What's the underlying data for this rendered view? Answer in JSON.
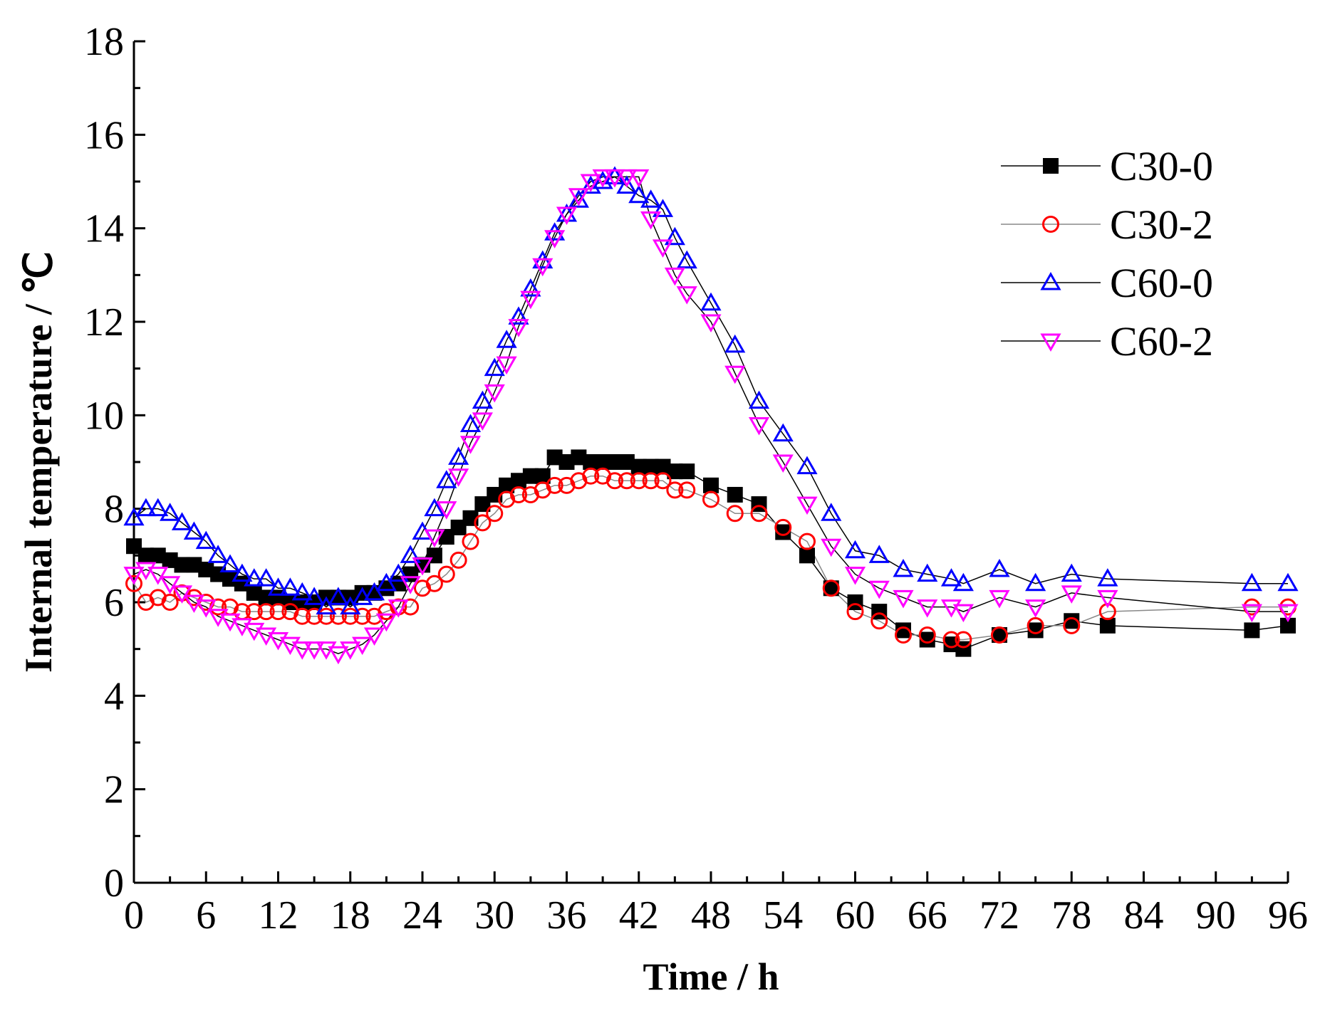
{
  "chart_data": {
    "type": "line",
    "title": "",
    "xlabel": "Time / h",
    "ylabel": "Internal temperature / ℃",
    "xlim": [
      0,
      96
    ],
    "ylim": [
      0,
      18
    ],
    "xticks": [
      "0",
      "6",
      "12",
      "18",
      "24",
      "30",
      "36",
      "42",
      "48",
      "54",
      "60",
      "66",
      "72",
      "78",
      "84",
      "90",
      "96"
    ],
    "yticks": [
      "0",
      "2",
      "4",
      "6",
      "8",
      "10",
      "12",
      "14",
      "16",
      "18"
    ],
    "grid": false,
    "legend_position": "top-right",
    "series": [
      {
        "name": "C30-0",
        "marker": "square",
        "marker_color": "#000000",
        "line_color": "#000000",
        "x": [
          0,
          1,
          2,
          3,
          4,
          5,
          6,
          7,
          8,
          9,
          10,
          11,
          12,
          13,
          14,
          15,
          16,
          17,
          18,
          19,
          20,
          21,
          22,
          23,
          24,
          25,
          26,
          27,
          28,
          29,
          30,
          31,
          32,
          33,
          34,
          35,
          36,
          37,
          38,
          39,
          40,
          41,
          42,
          43,
          44,
          45,
          46,
          48,
          50,
          52,
          54,
          56,
          58,
          60,
          62,
          64,
          66,
          68,
          69,
          72,
          75,
          78,
          81,
          93,
          96
        ],
        "y": [
          7.2,
          7.0,
          7.0,
          6.9,
          6.8,
          6.8,
          6.7,
          6.6,
          6.5,
          6.4,
          6.2,
          6.1,
          6.1,
          6.0,
          6.0,
          6.0,
          6.1,
          6.1,
          6.1,
          6.2,
          6.2,
          6.3,
          6.4,
          6.6,
          6.8,
          7.0,
          7.4,
          7.6,
          7.8,
          8.1,
          8.3,
          8.5,
          8.6,
          8.7,
          8.7,
          9.1,
          9.0,
          9.1,
          9.0,
          9.0,
          9.0,
          9.0,
          8.9,
          8.9,
          8.9,
          8.8,
          8.8,
          8.5,
          8.3,
          8.1,
          7.5,
          7.0,
          6.3,
          6.0,
          5.8,
          5.4,
          5.2,
          5.1,
          5.0,
          5.3,
          5.4,
          5.6,
          5.5,
          5.4,
          5.5
        ]
      },
      {
        "name": "C30-2",
        "marker": "circle-open",
        "marker_color": "#ff0000",
        "line_color": "#888888",
        "x": [
          0,
          1,
          2,
          3,
          4,
          5,
          6,
          7,
          8,
          9,
          10,
          11,
          12,
          13,
          14,
          15,
          16,
          17,
          18,
          19,
          20,
          21,
          22,
          23,
          24,
          25,
          26,
          27,
          28,
          29,
          30,
          31,
          32,
          33,
          34,
          35,
          36,
          37,
          38,
          39,
          40,
          41,
          42,
          43,
          44,
          45,
          46,
          48,
          50,
          52,
          54,
          56,
          58,
          60,
          62,
          64,
          66,
          68,
          69,
          72,
          75,
          78,
          81,
          93,
          96
        ],
        "y": [
          6.4,
          6.0,
          6.1,
          6.0,
          6.2,
          6.1,
          6.0,
          5.9,
          5.9,
          5.8,
          5.8,
          5.8,
          5.8,
          5.8,
          5.7,
          5.7,
          5.7,
          5.7,
          5.7,
          5.7,
          5.7,
          5.8,
          5.9,
          5.9,
          6.3,
          6.4,
          6.6,
          6.9,
          7.3,
          7.7,
          7.9,
          8.2,
          8.3,
          8.3,
          8.4,
          8.5,
          8.5,
          8.6,
          8.7,
          8.7,
          8.6,
          8.6,
          8.6,
          8.6,
          8.6,
          8.4,
          8.4,
          8.2,
          7.9,
          7.9,
          7.6,
          7.3,
          6.3,
          5.8,
          5.6,
          5.3,
          5.3,
          5.2,
          5.2,
          5.3,
          5.5,
          5.5,
          5.8,
          5.9,
          5.9
        ]
      },
      {
        "name": "C60-0",
        "marker": "triangle-up-open",
        "marker_color": "#0000ff",
        "line_color": "#000000",
        "x": [
          0,
          1,
          2,
          3,
          4,
          5,
          6,
          7,
          8,
          9,
          10,
          11,
          12,
          13,
          14,
          15,
          16,
          17,
          18,
          19,
          20,
          21,
          22,
          23,
          24,
          25,
          26,
          27,
          28,
          29,
          30,
          31,
          32,
          33,
          34,
          35,
          36,
          37,
          38,
          39,
          40,
          41,
          42,
          43,
          44,
          45,
          46,
          48,
          50,
          52,
          54,
          56,
          58,
          60,
          62,
          64,
          66,
          68,
          69,
          72,
          75,
          78,
          81,
          93,
          96
        ],
        "y": [
          7.8,
          8.0,
          8.0,
          7.9,
          7.7,
          7.5,
          7.3,
          7.0,
          6.8,
          6.6,
          6.5,
          6.5,
          6.3,
          6.3,
          6.2,
          6.1,
          5.9,
          6.1,
          5.9,
          6.1,
          6.2,
          6.4,
          6.6,
          7.0,
          7.5,
          8.0,
          8.6,
          9.1,
          9.8,
          10.3,
          11.0,
          11.6,
          12.1,
          12.7,
          13.3,
          13.9,
          14.3,
          14.6,
          14.9,
          15.0,
          15.1,
          14.9,
          14.7,
          14.6,
          14.4,
          13.8,
          13.3,
          12.4,
          11.5,
          10.3,
          9.6,
          8.9,
          7.9,
          7.1,
          7.0,
          6.7,
          6.6,
          6.5,
          6.4,
          6.7,
          6.4,
          6.6,
          6.5,
          6.4,
          6.4
        ]
      },
      {
        "name": "C60-2",
        "marker": "triangle-down-open",
        "marker_color": "#ff00ff",
        "line_color": "#000000",
        "x": [
          0,
          1,
          2,
          3,
          4,
          5,
          6,
          7,
          8,
          9,
          10,
          11,
          12,
          13,
          14,
          15,
          16,
          17,
          18,
          19,
          20,
          21,
          22,
          23,
          24,
          25,
          26,
          27,
          28,
          29,
          30,
          31,
          32,
          33,
          34,
          35,
          36,
          37,
          38,
          39,
          40,
          41,
          42,
          43,
          44,
          45,
          46,
          48,
          50,
          52,
          54,
          56,
          58,
          60,
          62,
          64,
          66,
          68,
          69,
          72,
          75,
          78,
          81,
          93,
          96
        ],
        "y": [
          6.6,
          6.7,
          6.6,
          6.4,
          6.2,
          6.0,
          5.9,
          5.7,
          5.6,
          5.5,
          5.4,
          5.3,
          5.2,
          5.1,
          5.0,
          5.0,
          5.0,
          4.9,
          5.0,
          5.1,
          5.3,
          5.6,
          5.9,
          6.4,
          6.8,
          7.4,
          8.0,
          8.7,
          9.4,
          9.9,
          10.5,
          11.1,
          11.9,
          12.5,
          13.2,
          13.8,
          14.3,
          14.7,
          15.0,
          15.1,
          15.1,
          15.1,
          15.1,
          14.2,
          13.6,
          13.0,
          12.6,
          12.0,
          10.9,
          9.8,
          9.0,
          8.1,
          7.2,
          6.6,
          6.3,
          6.1,
          5.9,
          5.9,
          5.8,
          6.1,
          5.9,
          6.2,
          6.1,
          5.8,
          5.8
        ]
      }
    ]
  }
}
